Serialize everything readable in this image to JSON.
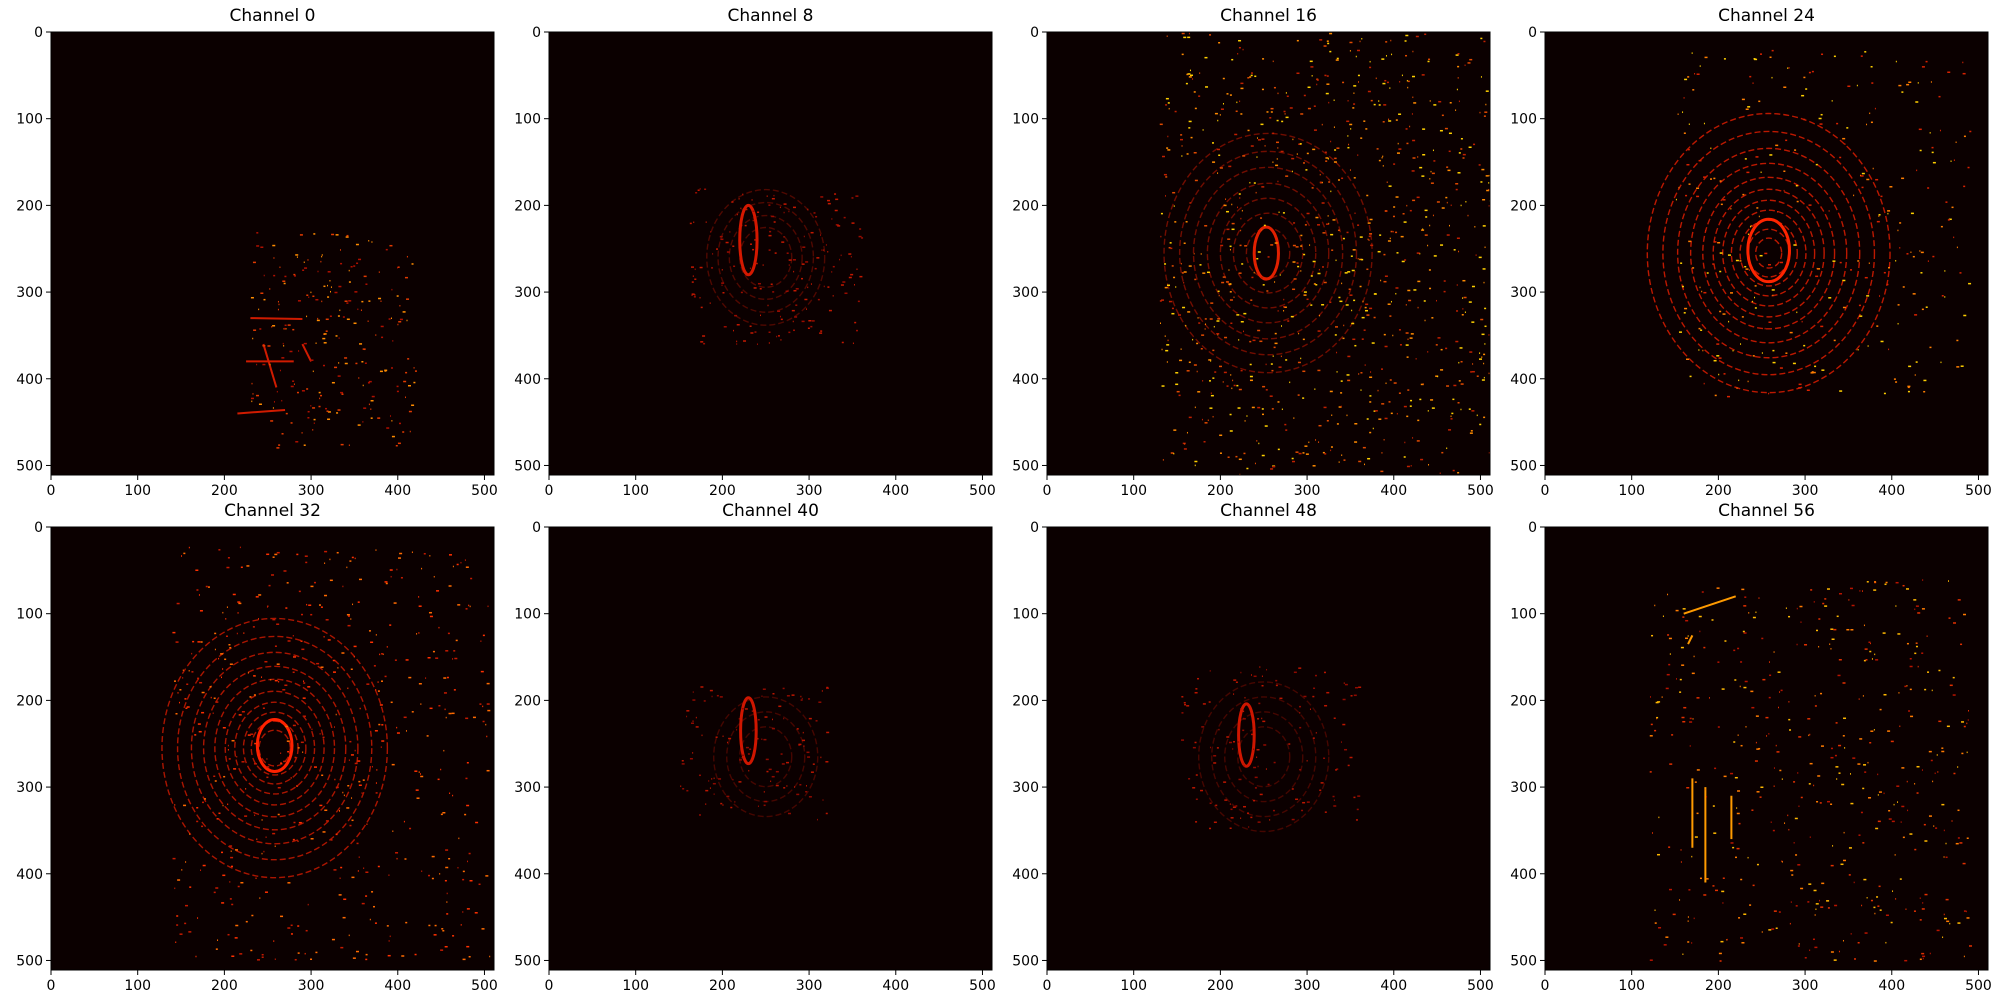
{
  "chart_data": {
    "type": "heatmap",
    "colormap": "hot",
    "background_color": "#0b0000",
    "xlim": [
      0,
      511
    ],
    "ylim": [
      511,
      0
    ],
    "x_ticks": [
      0,
      100,
      200,
      300,
      400,
      500
    ],
    "y_ticks": [
      0,
      100,
      200,
      300,
      400,
      500
    ],
    "panels": [
      {
        "title": "Channel 0",
        "features": [
          {
            "kind": "lines",
            "cx": 270,
            "cy": 300,
            "color": "#d01b00",
            "segs": [
              [
                230,
                330,
                290,
                331
              ],
              [
                225,
                380,
                280,
                380
              ],
              [
                215,
                440,
                270,
                436
              ],
              [
                290,
                360,
                300,
                380
              ],
              [
                245,
                360,
                260,
                410
              ]
            ]
          },
          {
            "kind": "scatter",
            "x_range": [
              230,
              420
            ],
            "y_range": [
              230,
              480
            ],
            "count": 240,
            "seed": 3,
            "colors": [
              "#e23a00",
              "#ff8c00",
              "#b01000"
            ]
          }
        ]
      },
      {
        "title": "Channel 8",
        "features": [
          {
            "kind": "rings",
            "cx": 250,
            "cy": 260,
            "radii": [
              30,
              42,
              55,
              68
            ],
            "color": "#a51200",
            "opacity": 0.45
          },
          {
            "kind": "blob",
            "cx": 230,
            "cy": 240,
            "rx": 10,
            "ry": 40,
            "color": "#d41800"
          },
          {
            "kind": "scatter",
            "x_range": [
              160,
              360
            ],
            "y_range": [
              180,
              360
            ],
            "count": 180,
            "seed": 11,
            "colors": [
              "#9a0c00",
              "#c31800"
            ]
          }
        ]
      },
      {
        "title": "Channel 16",
        "features": [
          {
            "kind": "rings",
            "cx": 255,
            "cy": 255,
            "radii": [
              25,
              40,
              55,
              70,
              86,
              102,
              120
            ],
            "color": "#c71800",
            "opacity": 0.55
          },
          {
            "kind": "blob",
            "cx": 253,
            "cy": 255,
            "rx": 14,
            "ry": 30,
            "color": "#e22000"
          },
          {
            "kind": "scatter",
            "x_range": [
              130,
              511
            ],
            "y_range": [
              0,
              511
            ],
            "count": 900,
            "seed": 21,
            "colors": [
              "#ff8a00",
              "#e04a00",
              "#ffd000",
              "#c02000"
            ]
          }
        ]
      },
      {
        "title": "Channel 24",
        "features": [
          {
            "kind": "rings",
            "cx": 258,
            "cy": 255,
            "radii": [
              15,
              24,
              33,
              43,
              53,
              64,
              76,
              90,
              105,
              122,
              140
            ],
            "color": "#e81e00",
            "opacity": 0.8
          },
          {
            "kind": "blob",
            "cx": 258,
            "cy": 252,
            "rx": 24,
            "ry": 36,
            "color": "#ff2500"
          },
          {
            "kind": "scatter",
            "x_range": [
              150,
              490
            ],
            "y_range": [
              20,
              420
            ],
            "count": 300,
            "seed": 37,
            "colors": [
              "#d82200",
              "#ff7d00",
              "#ffcf00"
            ]
          }
        ]
      },
      {
        "title": "Channel 32",
        "features": [
          {
            "kind": "rings",
            "cx": 258,
            "cy": 255,
            "radii": [
              18,
              27,
              36,
              46,
              57,
              69,
              82,
              96,
              112,
              130
            ],
            "color": "#e01c00",
            "opacity": 0.75
          },
          {
            "kind": "blob",
            "cx": 258,
            "cy": 252,
            "rx": 20,
            "ry": 30,
            "color": "#ff2200"
          },
          {
            "kind": "scatter",
            "x_range": [
              140,
              511
            ],
            "y_range": [
              20,
              500
            ],
            "count": 520,
            "seed": 45,
            "colors": [
              "#c41a00",
              "#ff6a00",
              "#ff3000"
            ]
          }
        ]
      },
      {
        "title": "Channel 40",
        "features": [
          {
            "kind": "rings",
            "cx": 250,
            "cy": 265,
            "radii": [
              30,
              45,
              60
            ],
            "color": "#a01000",
            "opacity": 0.4
          },
          {
            "kind": "blob",
            "cx": 230,
            "cy": 235,
            "rx": 9,
            "ry": 38,
            "color": "#cf1600"
          },
          {
            "kind": "scatter",
            "x_range": [
              150,
              320
            ],
            "y_range": [
              180,
              340
            ],
            "count": 120,
            "seed": 53,
            "colors": [
              "#8f0a00",
              "#bb1600"
            ]
          }
        ]
      },
      {
        "title": "Channel 48",
        "features": [
          {
            "kind": "rings",
            "cx": 250,
            "cy": 265,
            "radii": [
              30,
              45,
              60,
              75
            ],
            "color": "#a01000",
            "opacity": 0.4
          },
          {
            "kind": "blob",
            "cx": 230,
            "cy": 240,
            "rx": 9,
            "ry": 36,
            "color": "#cf1600"
          },
          {
            "kind": "scatter",
            "x_range": [
              150,
              360
            ],
            "y_range": [
              160,
              350
            ],
            "count": 140,
            "seed": 61,
            "colors": [
              "#8f0a00",
              "#bb1600"
            ]
          }
        ]
      },
      {
        "title": "Channel 56",
        "features": [
          {
            "kind": "lines",
            "cx": 0,
            "cy": 0,
            "color": "#ff9a00",
            "segs": [
              [
                170,
                290,
                170,
                370
              ],
              [
                185,
                300,
                185,
                410
              ],
              [
                215,
                310,
                215,
                360
              ],
              [
                160,
                100,
                220,
                80
              ],
              [
                165,
                135,
                170,
                125
              ]
            ]
          },
          {
            "kind": "scatter",
            "x_range": [
              120,
              490
            ],
            "y_range": [
              60,
              500
            ],
            "count": 480,
            "seed": 77,
            "colors": [
              "#b81400",
              "#ff7a00",
              "#ffb800",
              "#e23000"
            ]
          }
        ]
      }
    ]
  }
}
